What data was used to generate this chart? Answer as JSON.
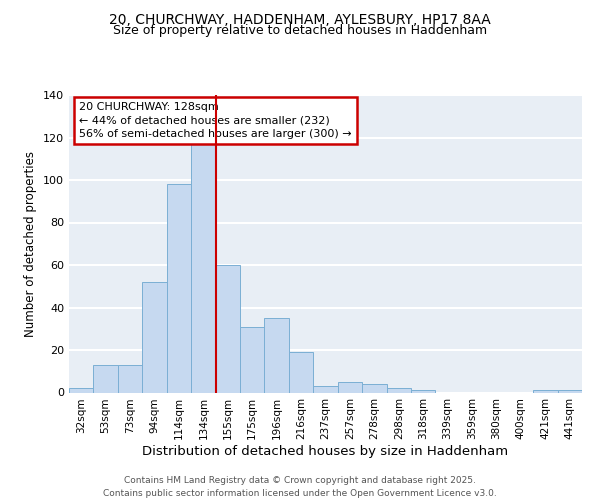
{
  "title_line1": "20, CHURCHWAY, HADDENHAM, AYLESBURY, HP17 8AA",
  "title_line2": "Size of property relative to detached houses in Haddenham",
  "xlabel": "Distribution of detached houses by size in Haddenham",
  "ylabel": "Number of detached properties",
  "categories": [
    "32sqm",
    "53sqm",
    "73sqm",
    "94sqm",
    "114sqm",
    "134sqm",
    "155sqm",
    "175sqm",
    "196sqm",
    "216sqm",
    "237sqm",
    "257sqm",
    "278sqm",
    "298sqm",
    "318sqm",
    "339sqm",
    "359sqm",
    "380sqm",
    "400sqm",
    "421sqm",
    "441sqm"
  ],
  "values": [
    2,
    13,
    13,
    52,
    98,
    118,
    60,
    31,
    35,
    19,
    3,
    5,
    4,
    2,
    1,
    0,
    0,
    0,
    0,
    1,
    1
  ],
  "bar_color": "#c6d9f0",
  "bar_edge_color": "#7bafd4",
  "vline_x_index": 5,
  "vline_color": "#cc0000",
  "annotation_text": "20 CHURCHWAY: 128sqm\n← 44% of detached houses are smaller (232)\n56% of semi-detached houses are larger (300) →",
  "annotation_box_color": "#ffffff",
  "annotation_box_edge_color": "#cc0000",
  "ylim": [
    0,
    140
  ],
  "yticks": [
    0,
    20,
    40,
    60,
    80,
    100,
    120,
    140
  ],
  "background_color": "#e8eef5",
  "grid_color": "#ffffff",
  "footer_text": "Contains HM Land Registry data © Crown copyright and database right 2025.\nContains public sector information licensed under the Open Government Licence v3.0.",
  "title_fontsize": 10,
  "subtitle_fontsize": 9,
  "xlabel_fontsize": 9.5,
  "ylabel_fontsize": 8.5,
  "tick_fontsize": 7.5,
  "annotation_fontsize": 8,
  "footer_fontsize": 6.5
}
